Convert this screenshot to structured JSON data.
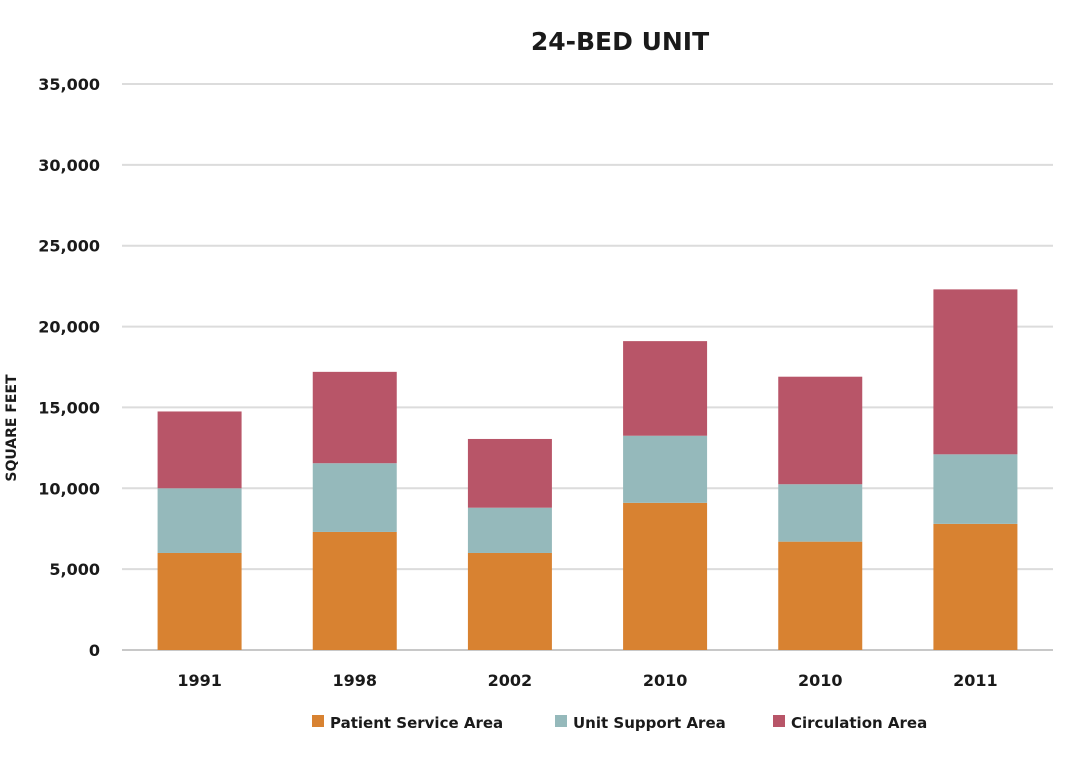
{
  "chart_data": {
    "type": "bar",
    "stacked": true,
    "title": "24-BED UNIT",
    "xlabel": "",
    "ylabel": "SQUARE FEET",
    "categories": [
      "1991",
      "1998",
      "2002",
      "2010",
      "2010",
      "2011"
    ],
    "series": [
      {
        "name": "Patient Service Area",
        "color": "#d88231",
        "values": [
          6000,
          7300,
          6000,
          9100,
          6700,
          7800
        ]
      },
      {
        "name": "Unit Support Area",
        "color": "#95b9bb",
        "values": [
          4000,
          4250,
          2800,
          4150,
          3550,
          4300
        ]
      },
      {
        "name": "Circulation Area",
        "color": "#b85568",
        "values": [
          4750,
          5650,
          4250,
          5850,
          6650,
          10200
        ]
      }
    ],
    "ylim": [
      0,
      35000
    ],
    "yticks": [
      0,
      5000,
      10000,
      15000,
      20000,
      25000,
      30000,
      35000
    ],
    "ytick_labels": [
      "0",
      "5,000",
      "10,000",
      "15,000",
      "20,000",
      "25,000",
      "30,000",
      "35,000"
    ],
    "grid": true,
    "legend_position": "bottom"
  }
}
